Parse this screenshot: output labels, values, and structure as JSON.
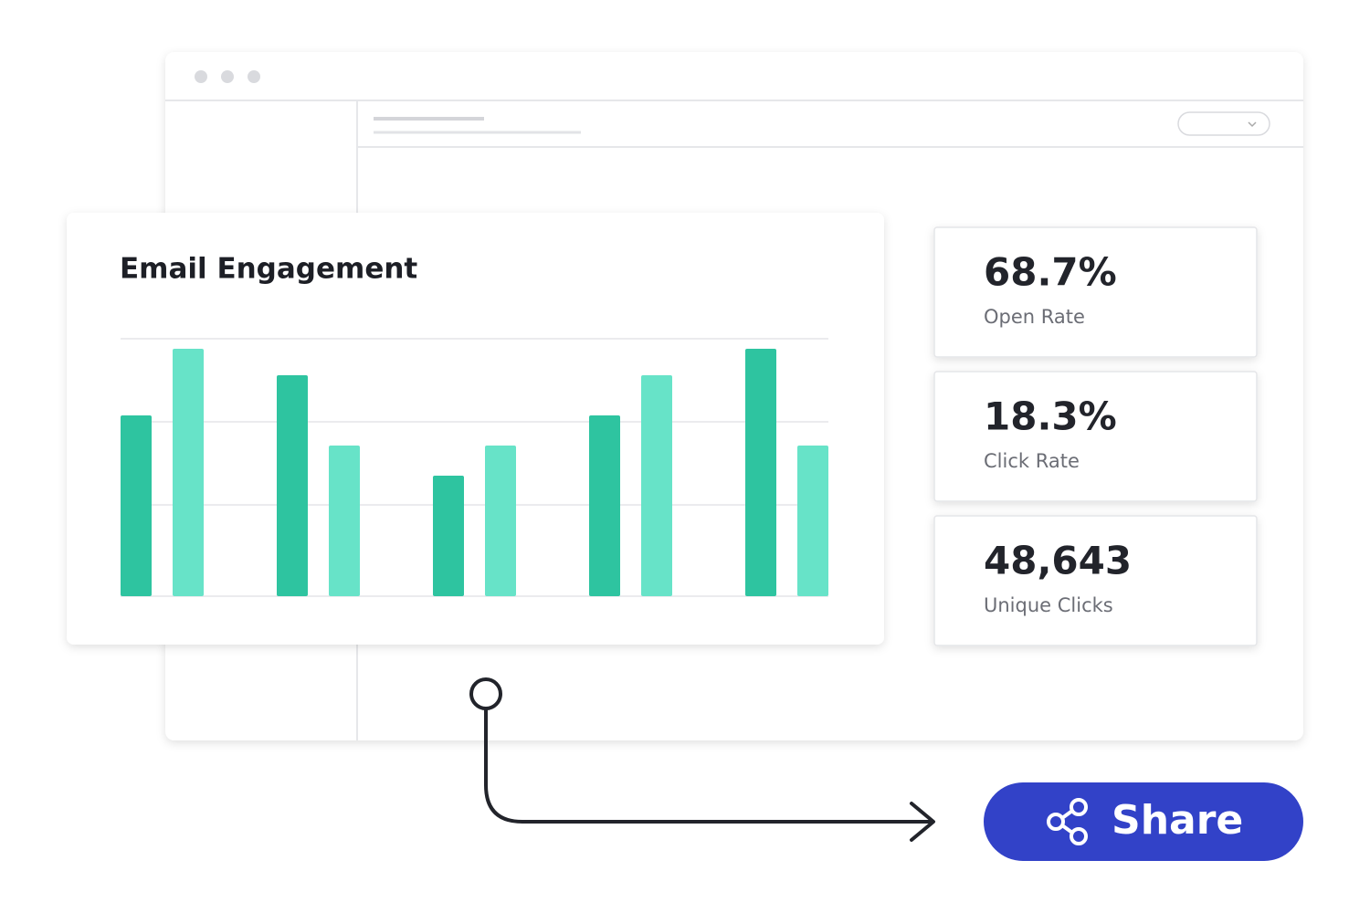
{
  "chart_data": {
    "type": "bar",
    "title": "Email Engagement",
    "categories": [
      null,
      null,
      null,
      null,
      null
    ],
    "series": [
      {
        "color": "#2ec4a0",
        "values": [
          198,
          242,
          132,
          198,
          271
        ]
      },
      {
        "color": "#67e3c8",
        "values": [
          271,
          165,
          165,
          242,
          165
        ]
      }
    ],
    "ylim": [
      0,
      282
    ],
    "yticks": [
      0,
      100,
      191,
      282
    ],
    "grid": true
  },
  "stats": [
    {
      "value": "68.7%",
      "label": "Open Rate"
    },
    {
      "value": "18.3%",
      "label": "Click Rate"
    },
    {
      "value": "48,643",
      "label": "Unique Clicks"
    }
  ],
  "share_button": {
    "label": "Share"
  }
}
